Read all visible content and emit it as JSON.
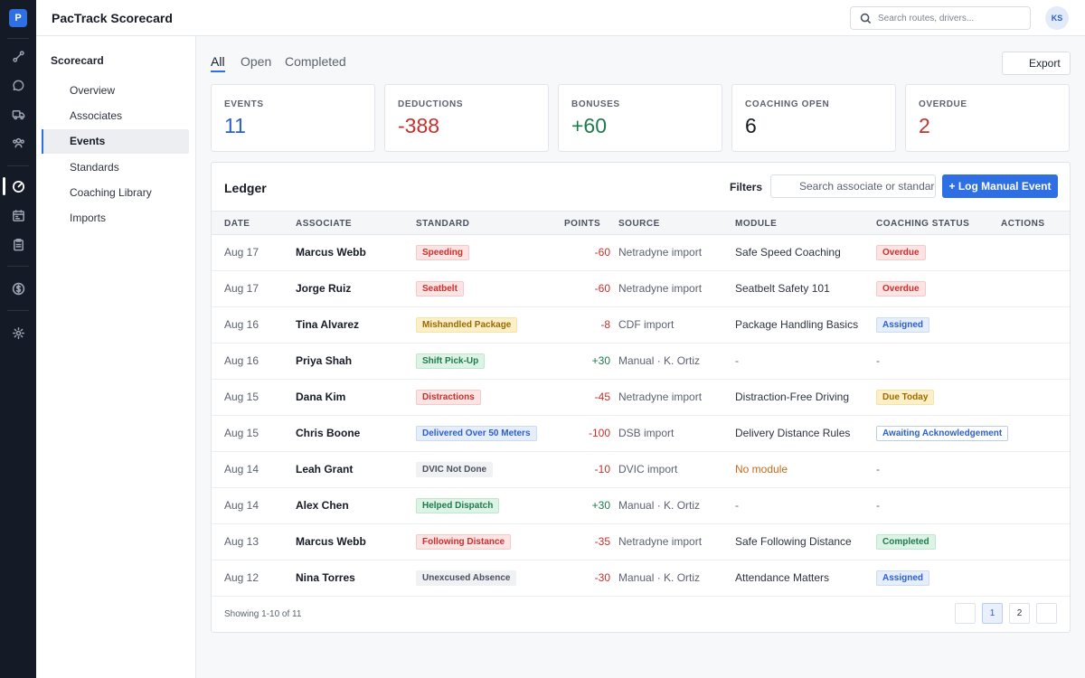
{
  "app": {
    "logo_letter": "P",
    "title": "PacTrack Scorecard"
  },
  "header": {
    "search_placeholder": "Search routes, drivers...",
    "avatar_initials": "KS"
  },
  "rail": {
    "icons": [
      "route-icon",
      "chat-icon",
      "truck-icon",
      "team-icon",
      "gauge-icon",
      "calendar-icon",
      "clipboard-icon",
      "dollar-icon",
      "settings-icon"
    ],
    "active": "gauge-icon"
  },
  "sidebar": {
    "heading": "Scorecard",
    "items": [
      {
        "label": "Overview"
      },
      {
        "label": "Associates"
      },
      {
        "label": "Events",
        "active": true
      },
      {
        "label": "Standards"
      },
      {
        "label": "Coaching Library"
      },
      {
        "label": "Imports"
      }
    ]
  },
  "tabs": [
    {
      "label": "All",
      "active": true
    },
    {
      "label": "Open"
    },
    {
      "label": "Completed"
    }
  ],
  "export_label": "Export",
  "stats": [
    {
      "label": "EVENTS",
      "value": "11",
      "color": "#2c5fcf"
    },
    {
      "label": "DEDUCTIONS",
      "value": "-388",
      "color": "#c9302c"
    },
    {
      "label": "BONUSES",
      "value": "+60",
      "color": "#1f7a4d"
    },
    {
      "label": "COACHING OPEN",
      "value": "6",
      "color": "#161b26"
    },
    {
      "label": "OVERDUE",
      "value": "2",
      "color": "#c9302c"
    }
  ],
  "ledger": {
    "title": "Ledger",
    "filters_label": "Filters",
    "filter_placeholder": "Search associate or standard",
    "log_button": "+ Log Manual Event",
    "columns": [
      "DATE",
      "ASSOCIATE",
      "STANDARD",
      "POINTS",
      "SOURCE",
      "MODULE",
      "COACHING STATUS",
      "ACTIONS"
    ],
    "rows": [
      {
        "date": "Aug 17",
        "associate": "Marcus Webb",
        "standard": "Speeding",
        "std_tone": "red",
        "points": "-60",
        "source": "Netradyne import",
        "module": "Safe Speed Coaching",
        "coaching": "Overdue",
        "coach_tone": "red"
      },
      {
        "date": "Aug 17",
        "associate": "Jorge Ruiz",
        "standard": "Seatbelt",
        "std_tone": "red",
        "points": "-60",
        "source": "Netradyne import",
        "module": "Seatbelt Safety 101",
        "coaching": "Overdue",
        "coach_tone": "red"
      },
      {
        "date": "Aug 16",
        "associate": "Tina Alvarez",
        "standard": "Mishandled Package",
        "std_tone": "amber",
        "points": "-8",
        "source": "CDF import",
        "module": "Package Handling Basics",
        "coaching": "Assigned",
        "coach_tone": "blue"
      },
      {
        "date": "Aug 16",
        "associate": "Priya Shah",
        "standard": "Shift Pick-Up",
        "std_tone": "green",
        "points": "+30",
        "source": "Manual · K. Ortiz",
        "module": "-",
        "coaching": "-",
        "coach_tone": "plain"
      },
      {
        "date": "Aug 15",
        "associate": "Dana Kim",
        "standard": "Distractions",
        "std_tone": "red",
        "points": "-45",
        "source": "Netradyne import",
        "module": "Distraction-Free Driving",
        "coaching": "Due Today",
        "coach_tone": "amber"
      },
      {
        "date": "Aug 15",
        "associate": "Chris Boone",
        "standard": "Delivered Over 50 Meters",
        "std_tone": "blue",
        "points": "-100",
        "source": "DSB import",
        "module": "Delivery Distance Rules",
        "coaching": "Awaiting Acknowledgement",
        "coach_tone": "blue-outline"
      },
      {
        "date": "Aug 14",
        "associate": "Leah Grant",
        "standard": "DVIC Not Done",
        "std_tone": "gray",
        "points": "-10",
        "source": "DVIC import",
        "module": "No module",
        "module_warn": true,
        "coaching": "-",
        "coach_tone": "plain"
      },
      {
        "date": "Aug 14",
        "associate": "Alex Chen",
        "standard": "Helped Dispatch",
        "std_tone": "green",
        "points": "+30",
        "source": "Manual · K. Ortiz",
        "module": "-",
        "coaching": "-",
        "coach_tone": "plain"
      },
      {
        "date": "Aug 13",
        "associate": "Marcus Webb",
        "standard": "Following Distance",
        "std_tone": "red",
        "points": "-35",
        "source": "Netradyne import",
        "module": "Safe Following Distance",
        "coaching": "Completed",
        "coach_tone": "green"
      },
      {
        "date": "Aug 12",
        "associate": "Nina Torres",
        "standard": "Unexcused Absence",
        "std_tone": "gray",
        "points": "-30",
        "source": "Manual · K. Ortiz",
        "module": "Attendance Matters",
        "coaching": "Assigned",
        "coach_tone": "blue"
      }
    ],
    "showing": "Showing 1-10 of 11",
    "pages": [
      "1",
      "2"
    ],
    "current_page": "1"
  },
  "tones": {
    "red": {
      "bg": "#fde4e4",
      "fg": "#c9302c",
      "border": "#f6c9c9"
    },
    "amber": {
      "bg": "#fdf0c8",
      "fg": "#9a6a00",
      "border": "#f6e2a4"
    },
    "green": {
      "bg": "#dcf3e6",
      "fg": "#1f7a4d",
      "border": "#bfe6cf"
    },
    "blue": {
      "bg": "#e6eefc",
      "fg": "#2c5fcf",
      "border": "#cbdaf6"
    },
    "blue-outline": {
      "bg": "#ffffff",
      "fg": "#2c5fcf",
      "border": "#b8cdf2"
    },
    "gray": {
      "bg": "#f0f1f3",
      "fg": "#4a5160",
      "border": "#f0f1f3"
    }
  },
  "points_colors": {
    "negative": "#c9302c",
    "positive": "#1f7a4d"
  },
  "module_warn_color": "#c26a1a"
}
